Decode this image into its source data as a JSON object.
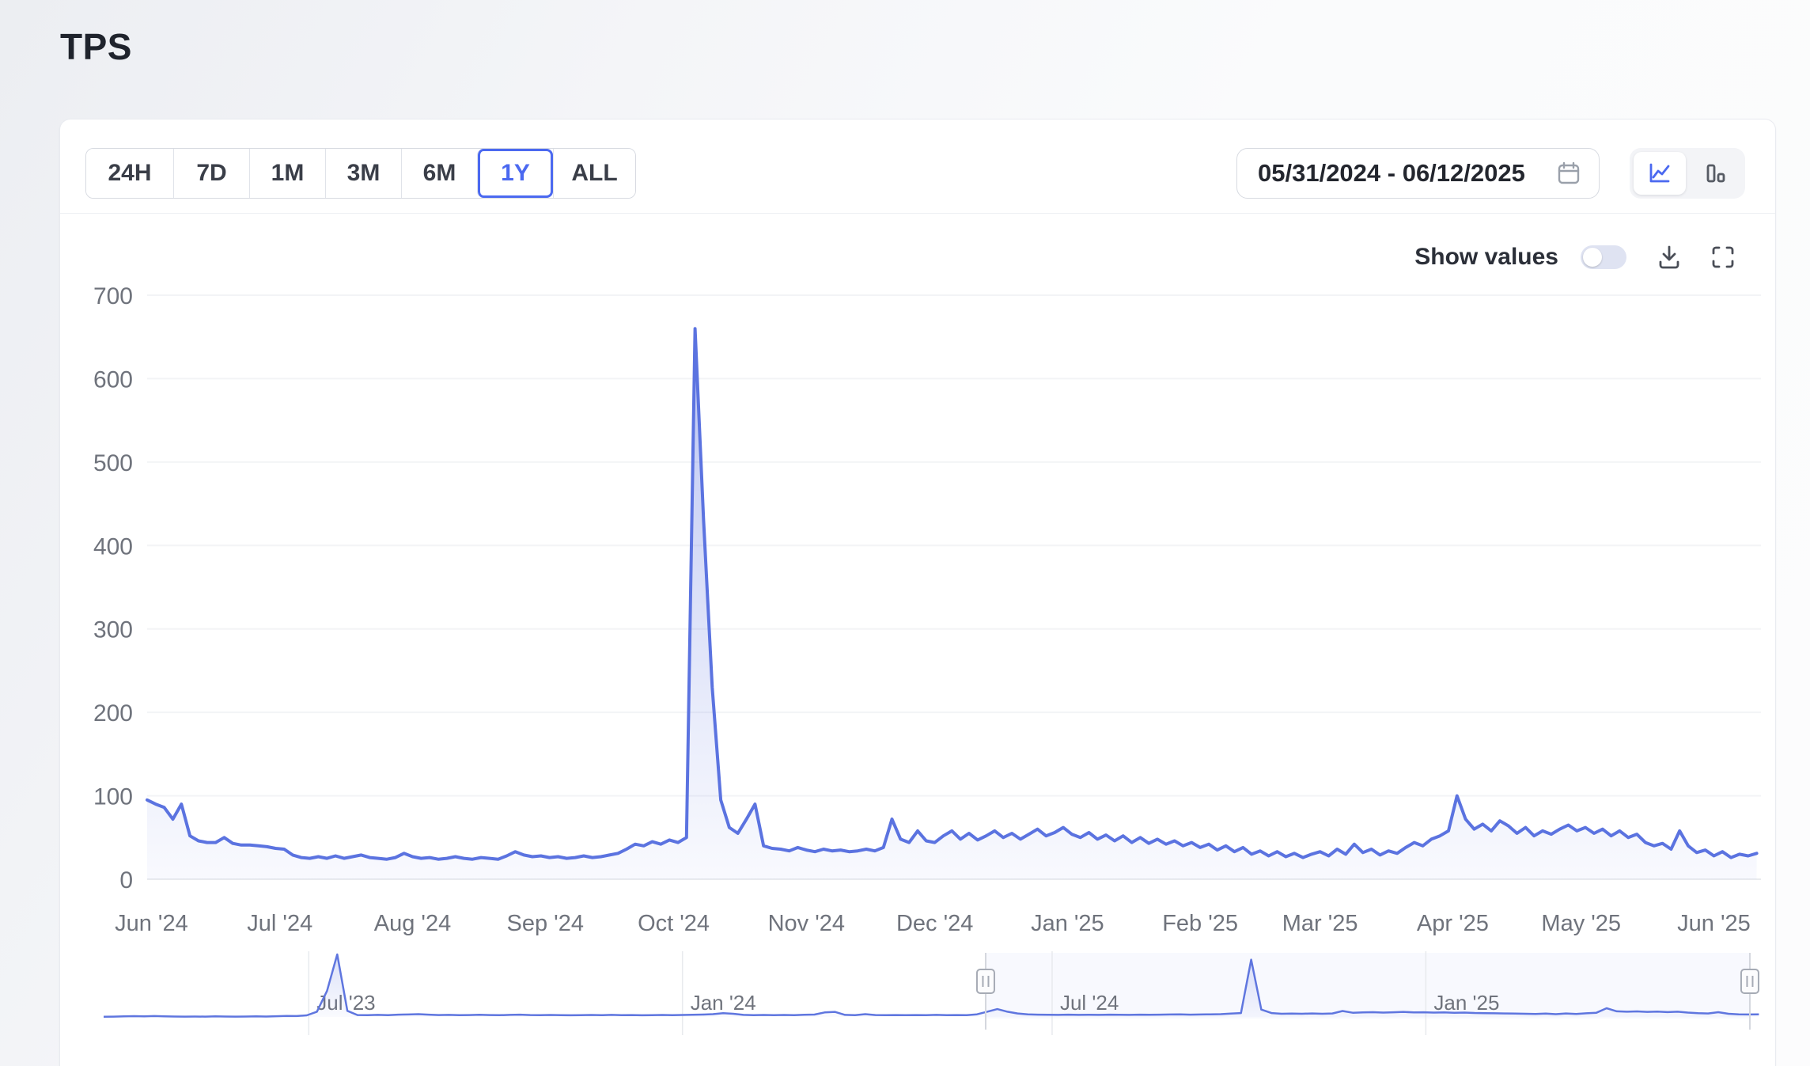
{
  "page": {
    "title": "TPS"
  },
  "toolbar": {
    "ranges": [
      {
        "label": "24H",
        "selected": false
      },
      {
        "label": "7D",
        "selected": false
      },
      {
        "label": "1M",
        "selected": false
      },
      {
        "label": "3M",
        "selected": false
      },
      {
        "label": "6M",
        "selected": false
      },
      {
        "label": "1Y",
        "selected": true
      },
      {
        "label": "ALL",
        "selected": false
      }
    ],
    "date_range": {
      "value": "05/31/2024 - 06/12/2025"
    },
    "chart_type": {
      "options": [
        "line",
        "bar"
      ],
      "selected": "line"
    }
  },
  "controls": {
    "show_values_label": "Show values",
    "show_values_on": false
  },
  "colors": {
    "accent": "#4b69f0",
    "line": "#5b73e0",
    "line_fill": "91,115,224",
    "nav_line": "#5f76df",
    "grid": "#f3f4f6",
    "axis_line": "#e9ebee",
    "tick_text": "#6f737c",
    "handle_stroke": "#a6abb5",
    "selection_fill": "rgba(91,115,224,0.045)"
  },
  "chart_data": [
    {
      "name": "main",
      "type": "area",
      "title": "TPS",
      "x_start": "2024-05-31",
      "x_end": "2025-06-12",
      "days_total": 377,
      "step_days": 2,
      "ylim": [
        0,
        700
      ],
      "y_ticks": [
        0,
        100,
        200,
        300,
        400,
        500,
        600,
        700
      ],
      "x_ticks": [
        {
          "label": "Jun '24",
          "day": 1
        },
        {
          "label": "Jul '24",
          "day": 31
        },
        {
          "label": "Aug '24",
          "day": 62
        },
        {
          "label": "Sep '24",
          "day": 93
        },
        {
          "label": "Oct '24",
          "day": 123
        },
        {
          "label": "Nov '24",
          "day": 154
        },
        {
          "label": "Dec '24",
          "day": 184
        },
        {
          "label": "Jan '25",
          "day": 215
        },
        {
          "label": "Feb '25",
          "day": 246
        },
        {
          "label": "Mar '25",
          "day": 274
        },
        {
          "label": "Apr '25",
          "day": 305
        },
        {
          "label": "May '25",
          "day": 335
        },
        {
          "label": "Jun '25",
          "day": 366
        }
      ],
      "grid": true,
      "legend": false,
      "peak": {
        "date": "2024-10-06",
        "value": 660
      },
      "values": [
        95,
        90,
        86,
        72,
        90,
        52,
        46,
        44,
        44,
        50,
        43,
        41,
        41,
        40,
        39,
        37,
        36,
        29,
        26,
        25,
        27,
        25,
        28,
        25,
        27,
        29,
        26,
        25,
        24,
        26,
        31,
        27,
        25,
        26,
        24,
        25,
        27,
        25,
        24,
        26,
        25,
        24,
        28,
        33,
        29,
        27,
        28,
        26,
        27,
        25,
        26,
        28,
        26,
        27,
        29,
        31,
        36,
        42,
        40,
        45,
        42,
        47,
        44,
        50,
        660,
        430,
        230,
        95,
        62,
        55,
        72,
        90,
        40,
        37,
        36,
        34,
        38,
        35,
        33,
        36,
        34,
        35,
        33,
        34,
        36,
        34,
        38,
        72,
        48,
        44,
        58,
        46,
        44,
        52,
        58,
        48,
        55,
        47,
        52,
        58,
        50,
        55,
        48,
        54,
        60,
        52,
        56,
        62,
        54,
        50,
        56,
        48,
        53,
        46,
        52,
        44,
        50,
        43,
        48,
        42,
        46,
        40,
        44,
        38,
        42,
        35,
        40,
        33,
        38,
        30,
        34,
        28,
        33,
        27,
        31,
        26,
        30,
        33,
        28,
        36,
        30,
        42,
        32,
        36,
        29,
        34,
        31,
        38,
        44,
        40,
        48,
        52,
        58,
        100,
        72,
        60,
        66,
        58,
        70,
        64,
        55,
        62,
        52,
        58,
        54,
        60,
        65,
        58,
        62,
        55,
        60,
        52,
        58,
        50,
        54,
        44,
        40,
        43,
        36,
        58,
        40,
        32,
        35,
        28,
        33,
        26,
        30,
        28,
        31
      ]
    },
    {
      "name": "navigator",
      "type": "area",
      "x_start": "2023-03-22",
      "x_end": "2025-06-15",
      "days_total": 816,
      "step_days": 5,
      "ymax": 720,
      "x_ticks": [
        {
          "label": "Jul '23",
          "day": 101
        },
        {
          "label": "Jan '24",
          "day": 285
        },
        {
          "label": "Jul '24",
          "day": 467
        },
        {
          "label": "Jan '25",
          "day": 651
        }
      ],
      "selection": {
        "start_frac": 0.5322,
        "end_frac": 0.9933,
        "start_date": "2024-05-31",
        "end_date": "2025-06-12"
      },
      "values": [
        3,
        4,
        6,
        9,
        6,
        10,
        7,
        5,
        4,
        5,
        4,
        6,
        5,
        4,
        5,
        6,
        5,
        8,
        12,
        10,
        18,
        60,
        300,
        900,
        70,
        22,
        20,
        24,
        21,
        26,
        28,
        32,
        26,
        22,
        24,
        21,
        22,
        25,
        22,
        20,
        24,
        26,
        22,
        20,
        23,
        21,
        19,
        21,
        23,
        20,
        24,
        21,
        22,
        19,
        21,
        23,
        21,
        23,
        25,
        27,
        32,
        44,
        36,
        24,
        21,
        23,
        21,
        23,
        21,
        25,
        27,
        52,
        58,
        24,
        21,
        32,
        22,
        20,
        22,
        20,
        22,
        21,
        24,
        20,
        22,
        21,
        30,
        60,
        90,
        60,
        40,
        30,
        26,
        25,
        24,
        26,
        24,
        25,
        24,
        26,
        25,
        24,
        26,
        25,
        26,
        28,
        30,
        26,
        28,
        30,
        32,
        38,
        45,
        660,
        85,
        45,
        36,
        38,
        36,
        40,
        36,
        40,
        68,
        48,
        52,
        55,
        50,
        54,
        58,
        52,
        54,
        50,
        52,
        48,
        50,
        46,
        44,
        42,
        40,
        38,
        36,
        34,
        38,
        32,
        40,
        35,
        42,
        48,
        100,
        65,
        60,
        64,
        58,
        62,
        56,
        60,
        50,
        44,
        40,
        55,
        36,
        30,
        28,
        30
      ]
    }
  ]
}
